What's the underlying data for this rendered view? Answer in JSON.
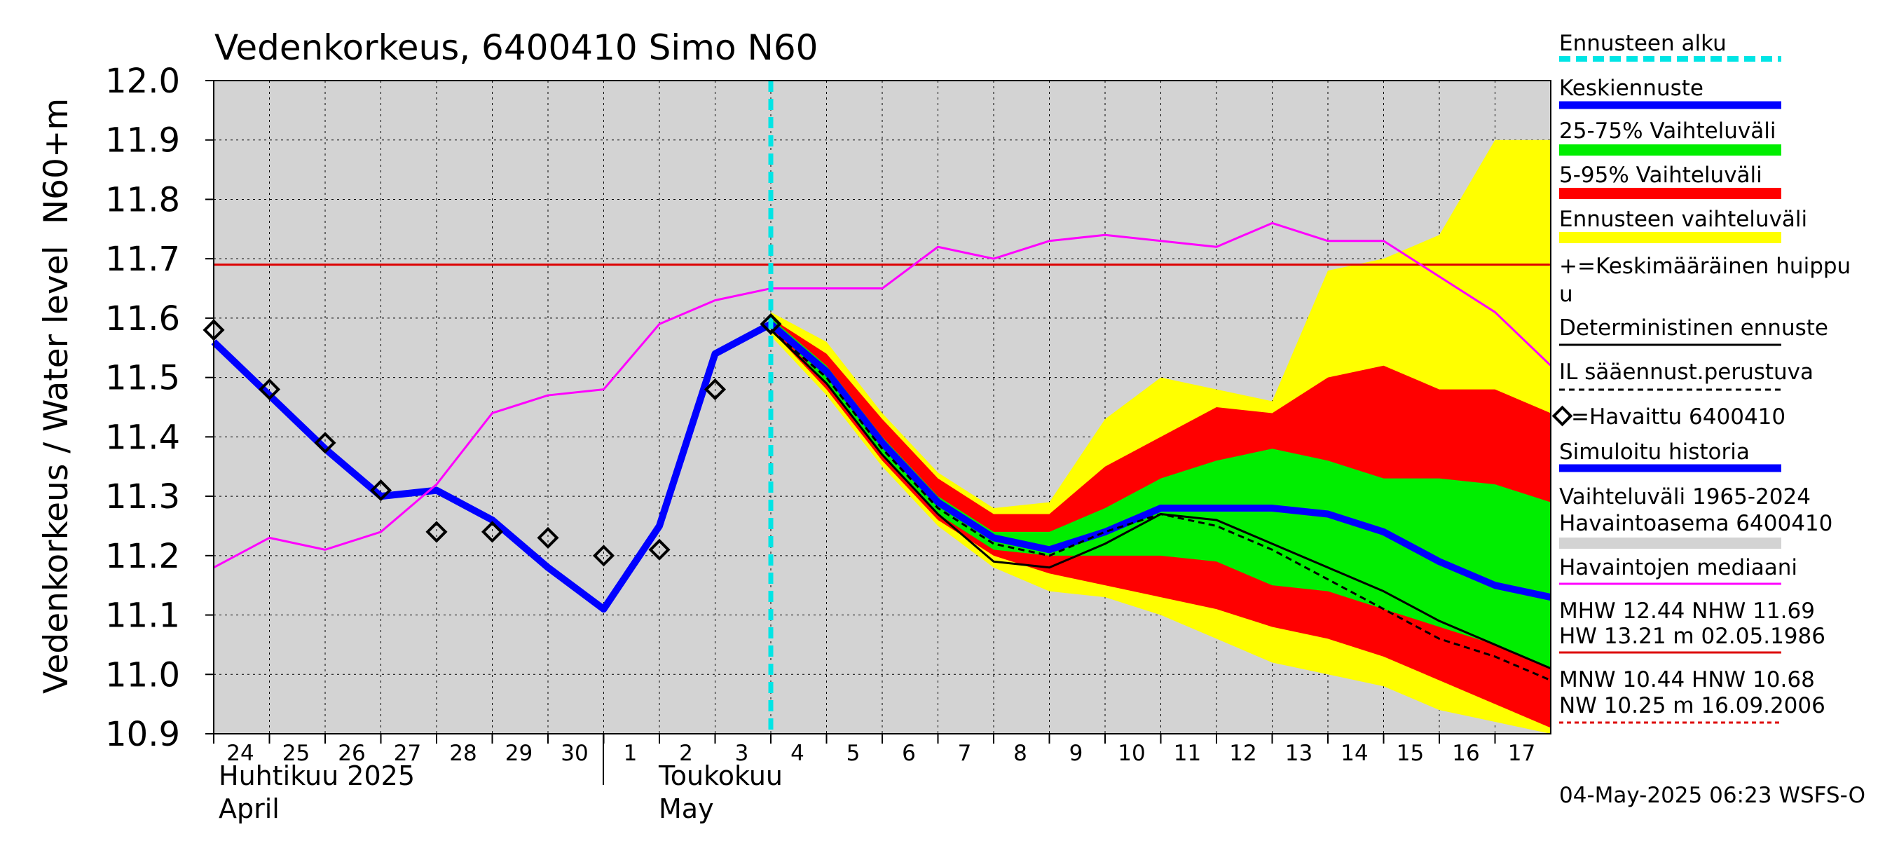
{
  "chart_data": {
    "type": "line",
    "title": "Vedenkorkeus, 6400410 Simo N60",
    "ylabel": "Vedenkorkeus / Water level",
    "yunit": "N60+m",
    "ylim": [
      10.9,
      12.0
    ],
    "yticks": [
      "12.0",
      "11.9",
      "11.8",
      "11.7",
      "11.6",
      "11.5",
      "11.4",
      "11.3",
      "11.2",
      "11.1",
      "11.0",
      "10.9"
    ],
    "x_day_index_range": [
      0,
      24
    ],
    "xtick_labels": [
      "24",
      "25",
      "26",
      "27",
      "28",
      "29",
      "30",
      "1",
      "2",
      "3",
      "4",
      "5",
      "6",
      "7",
      "8",
      "9",
      "10",
      "11",
      "12",
      "13",
      "14",
      "15",
      "16",
      "17"
    ],
    "month_labels": [
      {
        "fi": "Huhtikuu  2025",
        "en": "April"
      },
      {
        "fi": "Toukokuu",
        "en": "May"
      }
    ],
    "forecast_start_day": 10,
    "mean_peak_level": 11.69,
    "range_5_95": {
      "x": [
        10,
        11,
        12,
        13,
        14,
        15,
        16,
        17,
        18,
        19,
        20,
        21,
        22,
        23,
        24
      ],
      "upper": [
        11.6,
        11.54,
        11.43,
        11.33,
        11.27,
        11.27,
        11.35,
        11.4,
        11.45,
        11.44,
        11.5,
        11.52,
        11.48,
        11.48,
        11.44
      ],
      "lower": [
        11.58,
        11.48,
        11.36,
        11.26,
        11.2,
        11.17,
        11.15,
        11.13,
        11.11,
        11.08,
        11.06,
        11.03,
        10.99,
        10.95,
        10.91
      ]
    },
    "range_25_75": {
      "x": [
        10,
        11,
        12,
        13,
        14,
        15,
        16,
        17,
        18,
        19,
        20,
        21,
        22,
        23,
        24
      ],
      "upper": [
        11.6,
        11.52,
        11.4,
        11.3,
        11.24,
        11.24,
        11.28,
        11.33,
        11.36,
        11.38,
        11.36,
        11.33,
        11.33,
        11.32,
        11.29
      ],
      "lower": [
        11.59,
        11.49,
        11.37,
        11.27,
        11.21,
        11.2,
        11.2,
        11.2,
        11.19,
        11.15,
        11.14,
        11.11,
        11.08,
        11.05,
        11.01
      ]
    },
    "forecast_envelope": {
      "x": [
        10,
        11,
        12,
        13,
        14,
        15,
        16,
        17,
        18,
        19,
        20,
        21,
        22,
        23,
        24
      ],
      "upper": [
        11.61,
        11.56,
        11.44,
        11.34,
        11.28,
        11.29,
        11.43,
        11.5,
        11.48,
        11.46,
        11.68,
        11.7,
        11.74,
        11.9,
        11.9
      ],
      "lower": [
        11.57,
        11.47,
        11.35,
        11.25,
        11.18,
        11.14,
        11.13,
        11.1,
        11.06,
        11.02,
        11.0,
        10.98,
        10.94,
        10.92,
        10.9
      ]
    },
    "series": [
      {
        "name": "Simuloitu historia",
        "x": [
          0,
          1,
          2,
          3,
          4,
          5,
          6,
          7,
          8,
          9,
          10
        ],
        "values": [
          11.56,
          11.47,
          11.38,
          11.3,
          11.31,
          11.26,
          11.18,
          11.11,
          11.25,
          11.54,
          11.59
        ]
      },
      {
        "name": "Keskiennuste",
        "x": [
          10,
          11,
          12,
          13,
          14,
          15,
          16,
          17,
          18,
          19,
          20,
          21,
          22,
          23,
          24
        ],
        "values": [
          11.59,
          11.51,
          11.39,
          11.29,
          11.23,
          11.21,
          11.24,
          11.28,
          11.28,
          11.28,
          11.27,
          11.24,
          11.19,
          11.15,
          11.13
        ]
      },
      {
        "name": "Deterministinen ennuste",
        "x": [
          10,
          11,
          12,
          13,
          14,
          15,
          16,
          17,
          18,
          19,
          20,
          21,
          22,
          23,
          24
        ],
        "values": [
          11.58,
          11.49,
          11.37,
          11.27,
          11.19,
          11.18,
          11.22,
          11.27,
          11.26,
          11.22,
          11.18,
          11.14,
          11.09,
          11.05,
          11.01
        ]
      },
      {
        "name": "IL sääennust.perustuva",
        "x": [
          10,
          11,
          12,
          13,
          14,
          15,
          16,
          17,
          18,
          19,
          20,
          21,
          22,
          23,
          24
        ],
        "values": [
          11.58,
          11.5,
          11.38,
          11.28,
          11.22,
          11.2,
          11.24,
          11.27,
          11.25,
          11.21,
          11.16,
          11.11,
          11.06,
          11.03,
          10.99
        ]
      },
      {
        "name": "Havaintojen mediaani",
        "x": [
          0,
          1,
          2,
          3,
          4,
          5,
          6,
          7,
          8,
          9,
          10,
          11,
          12,
          13,
          14,
          15,
          16,
          17,
          18,
          19,
          20,
          21,
          22,
          23,
          24
        ],
        "values": [
          11.18,
          11.23,
          11.21,
          11.24,
          11.32,
          11.44,
          11.47,
          11.48,
          11.59,
          11.63,
          11.65,
          11.65,
          11.65,
          11.72,
          11.7,
          11.73,
          11.74,
          11.73,
          11.72,
          11.76,
          11.73,
          11.73,
          11.67,
          11.61,
          11.52
        ]
      }
    ],
    "observed": {
      "name": "Havaittu 6400410",
      "x": [
        0,
        1,
        2,
        3,
        4,
        5,
        6,
        7,
        8,
        9,
        10
      ],
      "values": [
        11.58,
        11.48,
        11.39,
        11.31,
        11.24,
        11.24,
        11.23,
        11.2,
        11.21,
        11.48,
        11.59
      ]
    },
    "legend": [
      "Ennusteen alku",
      "Keskiennuste",
      "25-75% Vaihteluväli",
      "5-95% Vaihteluväli",
      "Ennusteen vaihteluväli",
      "+=Keskimääräinen huippu",
      "Deterministinen ennuste",
      "IL sääennust.perustuva",
      "=Havaittu 6400410",
      "Simuloitu historia",
      "Vaihteluväli 1965-2024",
      " Havaintoasema 6400410",
      "Havaintojen mediaani"
    ],
    "stats": {
      "mhw_line": "MHW  12.44 NHW  11.69",
      "hw_line": "HW  13.21 m 02.05.1986",
      "mnw_line": "MNW  10.44 HNW  10.68",
      "nw_line": "NW  10.25 m 16.09.2006"
    },
    "timestamp": "04-May-2025 06:23 WSFS-O"
  },
  "colors": {
    "plot_bg": "#d3d3d3",
    "forecast_start": "#00e5e5",
    "mean_forecast": "#0000ff",
    "range_25_75": "#00ee00",
    "range_5_95": "#ff0000",
    "forecast_range": "#ffff00",
    "deterministic": "#000000",
    "median": "#ff00ff",
    "mean_peak": "#dd0000",
    "simulated_history": "#0000ff",
    "observed": "#000000"
  }
}
